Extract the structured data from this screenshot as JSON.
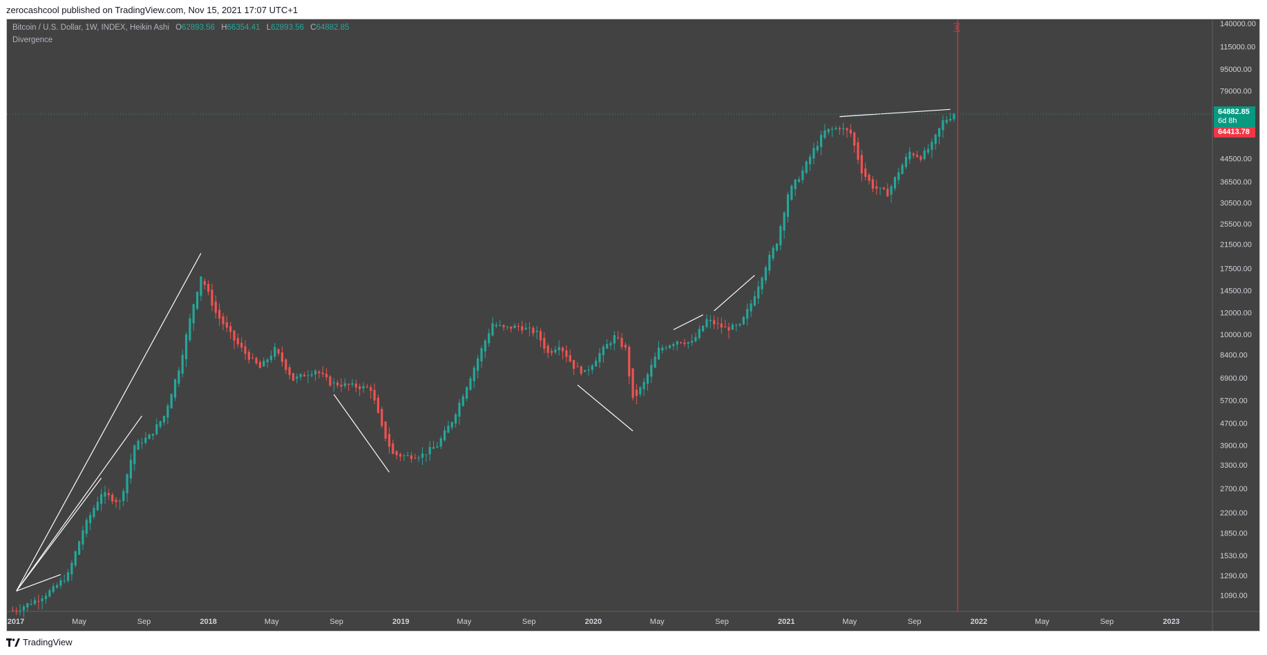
{
  "publish_line": "zerocashcool published on TradingView.com, Nov 15, 2021 17:07 UTC+1",
  "legend": {
    "symbol": "Bitcoin / U.S. Dollar, 1W, INDEX, Heikin Ashi",
    "o_label": "O",
    "o": "62893.56",
    "h_label": "H",
    "h": "66354.41",
    "l_label": "L",
    "l": "62893.56",
    "c_label": "C",
    "c": "64882.85"
  },
  "indicator_name": "Divergence",
  "last_price_tag": {
    "price": "64882.85",
    "countdown": "6d 8h"
  },
  "ref_price_tag": {
    "price": "64413.78"
  },
  "session_marker": "[W]",
  "footer_brand": "TradingView",
  "colors": {
    "background": "#424242",
    "up": "#26a69a",
    "down": "#ef5350",
    "axis_text": "#d1d4dc",
    "divergence_line": "#ffffff",
    "session_line": "#f23645"
  },
  "chart_data": {
    "type": "candlestick",
    "title": "Bitcoin / U.S. Dollar, 1W, INDEX, Heikin Ashi",
    "y_scale": "log",
    "ylim": [
      950,
      145000
    ],
    "x_ticks": [
      "2017",
      "May",
      "Sep",
      "2018",
      "May",
      "Sep",
      "2019",
      "May",
      "Sep",
      "2020",
      "May",
      "Sep",
      "2021",
      "May",
      "Sep",
      "2022",
      "May",
      "Sep",
      "2023"
    ],
    "x_tick_dates": [
      "2017-01-01",
      "2017-05-01",
      "2017-09-01",
      "2018-01-01",
      "2018-05-01",
      "2018-09-01",
      "2019-01-01",
      "2019-05-01",
      "2019-09-01",
      "2020-01-01",
      "2020-05-01",
      "2020-09-01",
      "2021-01-01",
      "2021-05-01",
      "2021-09-01",
      "2022-01-01",
      "2022-05-01",
      "2022-09-01",
      "2023-01-01"
    ],
    "y_ticks": [
      140000,
      115000,
      95000,
      79000,
      44500,
      36500,
      30500,
      25500,
      21500,
      17500,
      14500,
      12000,
      10000,
      8400,
      6900,
      5700,
      4700,
      3900,
      3300,
      2700,
      2200,
      1850,
      1530,
      1290,
      1090
    ],
    "y_tick_labels": [
      "140000.00",
      "115000.00",
      "95000.00",
      "79000.00",
      "44500.00",
      "36500.00",
      "30500.00",
      "25500.00",
      "21500.00",
      "17500.00",
      "14500.00",
      "12000.00",
      "10000.00",
      "8400.00",
      "6900.00",
      "5700.00",
      "4700.00",
      "3900.00",
      "3300.00",
      "2700.00",
      "2200.00",
      "1850.00",
      "1530.00",
      "1290.00",
      "1090.00"
    ],
    "series": [
      {
        "anchors": [
          [
            "2016-12-20",
            950
          ],
          [
            "2017-01-09",
            980
          ],
          [
            "2017-02-13",
            1060
          ],
          [
            "2017-03-13",
            1150
          ],
          [
            "2017-04-10",
            1300
          ],
          [
            "2017-05-08",
            1900
          ],
          [
            "2017-06-12",
            2600
          ],
          [
            "2017-07-17",
            2400
          ],
          [
            "2017-08-14",
            3900
          ],
          [
            "2017-09-11",
            4200
          ],
          [
            "2017-10-09",
            5000
          ],
          [
            "2017-11-06",
            7500
          ],
          [
            "2017-12-04",
            13000
          ],
          [
            "2017-12-18",
            16500
          ],
          [
            "2018-01-15",
            12000
          ],
          [
            "2018-02-19",
            9500
          ],
          [
            "2018-03-12",
            8500
          ],
          [
            "2018-04-09",
            7500
          ],
          [
            "2018-05-07",
            8800
          ],
          [
            "2018-06-11",
            6800
          ],
          [
            "2018-07-23",
            7400
          ],
          [
            "2018-08-20",
            6600
          ],
          [
            "2018-09-17",
            6500
          ],
          [
            "2018-10-15",
            6400
          ],
          [
            "2018-11-05",
            6300
          ],
          [
            "2018-11-26",
            4500
          ],
          [
            "2018-12-17",
            3600
          ],
          [
            "2019-01-14",
            3550
          ],
          [
            "2019-02-11",
            3600
          ],
          [
            "2019-03-11",
            3900
          ],
          [
            "2019-04-08",
            4800
          ],
          [
            "2019-05-06",
            6500
          ],
          [
            "2019-06-10",
            9500
          ],
          [
            "2019-06-24",
            11000
          ],
          [
            "2019-07-15",
            10500
          ],
          [
            "2019-08-12",
            10700
          ],
          [
            "2019-09-16",
            10100
          ],
          [
            "2019-10-07",
            8500
          ],
          [
            "2019-10-28",
            9200
          ],
          [
            "2019-11-25",
            7600
          ],
          [
            "2019-12-16",
            7200
          ],
          [
            "2020-01-13",
            8500
          ],
          [
            "2020-02-10",
            9800
          ],
          [
            "2020-03-02",
            8800
          ],
          [
            "2020-03-16",
            5700
          ],
          [
            "2020-04-06",
            6600
          ],
          [
            "2020-05-04",
            8800
          ],
          [
            "2020-06-08",
            9500
          ],
          [
            "2020-07-06",
            9300
          ],
          [
            "2020-08-03",
            11300
          ],
          [
            "2020-09-07",
            10500
          ],
          [
            "2020-10-05",
            10700
          ],
          [
            "2020-10-26",
            13000
          ],
          [
            "2020-11-23",
            18000
          ],
          [
            "2020-12-14",
            22000
          ],
          [
            "2021-01-04",
            33000
          ],
          [
            "2021-02-01",
            40000
          ],
          [
            "2021-02-22",
            48000
          ],
          [
            "2021-03-15",
            56000
          ],
          [
            "2021-04-12",
            58000
          ],
          [
            "2021-05-03",
            55000
          ],
          [
            "2021-05-24",
            40000
          ],
          [
            "2021-06-14",
            35000
          ],
          [
            "2021-07-12",
            33000
          ],
          [
            "2021-08-02",
            40000
          ],
          [
            "2021-08-23",
            47000
          ],
          [
            "2021-09-13",
            45000
          ],
          [
            "2021-10-04",
            50000
          ],
          [
            "2021-10-25",
            61000
          ],
          [
            "2021-11-15",
            64882.85
          ]
        ]
      }
    ],
    "divergence_lines": [
      [
        [
          "2017-01-02",
          1130
        ],
        [
          "2017-03-27",
          1300
        ]
      ],
      [
        [
          "2017-01-02",
          1130
        ],
        [
          "2017-06-12",
          2950
        ]
      ],
      [
        [
          "2017-01-02",
          1130
        ],
        [
          "2017-08-28",
          5000
        ]
      ],
      [
        [
          "2017-01-02",
          1130
        ],
        [
          "2017-12-18",
          19900
        ]
      ],
      [
        [
          "2018-08-27",
          6000
        ],
        [
          "2018-12-10",
          3100
        ]
      ],
      [
        [
          "2019-12-02",
          6500
        ],
        [
          "2020-03-16",
          4400
        ]
      ],
      [
        [
          "2020-06-01",
          10400
        ],
        [
          "2020-07-27",
          11800
        ]
      ],
      [
        [
          "2020-08-17",
          12200
        ],
        [
          "2020-11-02",
          16500
        ]
      ],
      [
        [
          "2021-04-12",
          63500
        ],
        [
          "2021-11-08",
          67500
        ]
      ]
    ],
    "session_marker_date": "2021-11-22",
    "last_price": 64882.85,
    "ref_price": 64413.78
  }
}
